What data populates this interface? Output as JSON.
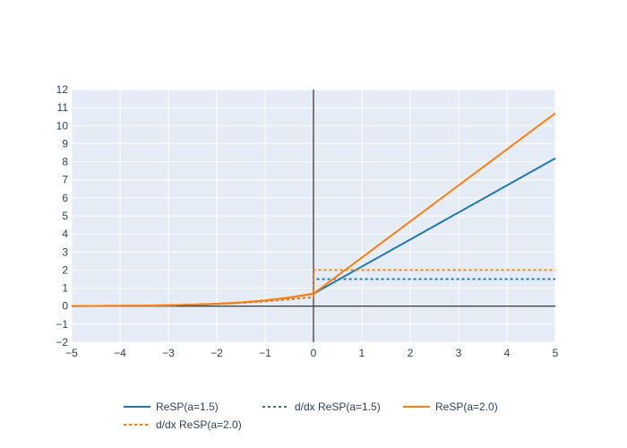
{
  "chart_data": {
    "type": "line",
    "title": "",
    "xlabel": "",
    "ylabel": "",
    "xlim": [
      -5,
      5
    ],
    "ylim": [
      -2,
      12
    ],
    "xticks": [
      -5,
      -4,
      -3,
      -2,
      -1,
      0,
      1,
      2,
      3,
      4,
      5
    ],
    "yticks": [
      -2,
      -1,
      0,
      1,
      2,
      3,
      4,
      5,
      6,
      7,
      8,
      9,
      10,
      11,
      12
    ],
    "xtick_labels": [
      "−5",
      "−4",
      "−3",
      "−2",
      "−1",
      "0",
      "1",
      "2",
      "3",
      "4",
      "5"
    ],
    "ytick_labels": [
      "−2",
      "−1",
      "0",
      "1",
      "2",
      "3",
      "4",
      "5",
      "6",
      "7",
      "8",
      "9",
      "10",
      "11",
      "12"
    ],
    "grid": true,
    "legend_position": "bottom",
    "series": [
      {
        "name": "ReSP(a=1.5)",
        "color": "#1f77b4",
        "dash": "solid",
        "x": [
          -5,
          -4.5,
          -4,
          -3.5,
          -3,
          -2.5,
          -2,
          -1.5,
          -1,
          -0.5,
          0,
          5
        ],
        "y": [
          0.0067,
          0.011,
          0.0181,
          0.0298,
          0.0486,
          0.0789,
          0.1269,
          0.2014,
          0.3133,
          0.4741,
          0.6931,
          8.1931
        ]
      },
      {
        "name": "d/dx ReSP(a=1.5)",
        "color": "#1f77b4",
        "dash": "dot",
        "x": [
          -5,
          -4.5,
          -4,
          -3.5,
          -3,
          -2.5,
          -2,
          -1.5,
          -1,
          -0.5,
          0,
          0,
          5
        ],
        "y": [
          0.0067,
          0.011,
          0.018,
          0.0293,
          0.0474,
          0.0759,
          0.1192,
          0.1824,
          0.2689,
          0.3775,
          0.5,
          1.5,
          1.5
        ]
      },
      {
        "name": "ReSP(a=2.0)",
        "color": "#ff7f0e",
        "dash": "solid",
        "x": [
          -5,
          -4.5,
          -4,
          -3.5,
          -3,
          -2.5,
          -2,
          -1.5,
          -1,
          -0.5,
          0,
          5
        ],
        "y": [
          0.0067,
          0.011,
          0.0181,
          0.0298,
          0.0486,
          0.0789,
          0.1269,
          0.2014,
          0.3133,
          0.4741,
          0.6931,
          10.6931
        ]
      },
      {
        "name": "d/dx ReSP(a=2.0)",
        "color": "#ff7f0e",
        "dash": "dot",
        "x": [
          -5,
          -4.5,
          -4,
          -3.5,
          -3,
          -2.5,
          -2,
          -1.5,
          -1,
          -0.5,
          0,
          0,
          5
        ],
        "y": [
          0.0067,
          0.011,
          0.018,
          0.0293,
          0.0474,
          0.0759,
          0.1192,
          0.1824,
          0.2689,
          0.3775,
          0.5,
          2.0,
          2.0
        ]
      }
    ]
  }
}
